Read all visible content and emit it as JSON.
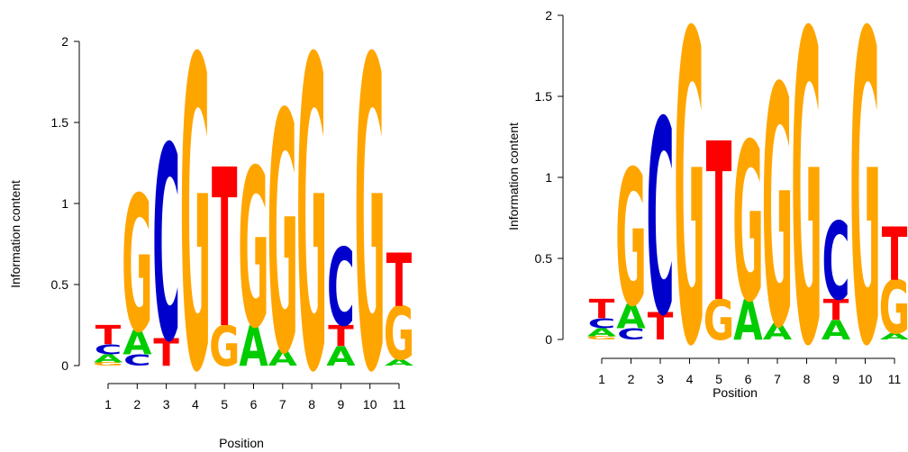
{
  "colors": {
    "A": "#00cc00",
    "C": "#0000cc",
    "G": "#ffa500",
    "T": "#ff0000"
  },
  "chart_data": [
    {
      "type": "sequence-logo",
      "xlabel": "Position",
      "ylabel": "Information content",
      "ylim": [
        0,
        2
      ],
      "yticks": [
        "0",
        "0.5",
        "1",
        "1.5",
        "2"
      ],
      "positions": [
        "1",
        "2",
        "3",
        "4",
        "5",
        "6",
        "7",
        "8",
        "9",
        "10",
        "11"
      ],
      "stacks": [
        [
          {
            "letter": "G",
            "bits": 0.02
          },
          {
            "letter": "A",
            "bits": 0.05
          },
          {
            "letter": "C",
            "bits": 0.06
          },
          {
            "letter": "T",
            "bits": 0.12
          }
        ],
        [
          {
            "letter": "C",
            "bits": 0.07
          },
          {
            "letter": "A",
            "bits": 0.15
          },
          {
            "letter": "G",
            "bits": 0.84
          }
        ],
        [
          {
            "letter": "T",
            "bits": 0.17
          },
          {
            "letter": "C",
            "bits": 1.2
          }
        ],
        [
          {
            "letter": "G",
            "bits": 1.92
          }
        ],
        [
          {
            "letter": "G",
            "bits": 0.25
          },
          {
            "letter": "T",
            "bits": 0.98
          }
        ],
        [
          {
            "letter": "A",
            "bits": 0.25
          },
          {
            "letter": "G",
            "bits": 0.98
          }
        ],
        [
          {
            "letter": "A",
            "bits": 0.1
          },
          {
            "letter": "G",
            "bits": 1.48
          }
        ],
        [
          {
            "letter": "G",
            "bits": 1.92
          }
        ],
        [
          {
            "letter": "A",
            "bits": 0.12
          },
          {
            "letter": "T",
            "bits": 0.13
          },
          {
            "letter": "C",
            "bits": 0.48
          }
        ],
        [
          {
            "letter": "G",
            "bits": 1.92
          }
        ],
        [
          {
            "letter": "A",
            "bits": 0.04
          },
          {
            "letter": "G",
            "bits": 0.33
          },
          {
            "letter": "T",
            "bits": 0.33
          }
        ]
      ]
    },
    {
      "type": "sequence-logo",
      "xlabel": "Position",
      "ylabel": "Information content",
      "ylim": [
        0,
        2
      ],
      "yticks": [
        "0",
        "0.5",
        "1",
        "1.5",
        "2"
      ],
      "positions": [
        "1",
        "2",
        "3",
        "4",
        "5",
        "6",
        "7",
        "8",
        "9",
        "10",
        "11"
      ],
      "stacks": [
        [
          {
            "letter": "G",
            "bits": 0.02
          },
          {
            "letter": "A",
            "bits": 0.05
          },
          {
            "letter": "C",
            "bits": 0.06
          },
          {
            "letter": "T",
            "bits": 0.12
          }
        ],
        [
          {
            "letter": "C",
            "bits": 0.07
          },
          {
            "letter": "A",
            "bits": 0.15
          },
          {
            "letter": "G",
            "bits": 0.84
          }
        ],
        [
          {
            "letter": "T",
            "bits": 0.17
          },
          {
            "letter": "C",
            "bits": 1.2
          }
        ],
        [
          {
            "letter": "G",
            "bits": 1.92
          }
        ],
        [
          {
            "letter": "G",
            "bits": 0.25
          },
          {
            "letter": "T",
            "bits": 0.98
          }
        ],
        [
          {
            "letter": "A",
            "bits": 0.25
          },
          {
            "letter": "G",
            "bits": 0.98
          }
        ],
        [
          {
            "letter": "A",
            "bits": 0.1
          },
          {
            "letter": "G",
            "bits": 1.48
          }
        ],
        [
          {
            "letter": "G",
            "bits": 1.92
          }
        ],
        [
          {
            "letter": "A",
            "bits": 0.12
          },
          {
            "letter": "T",
            "bits": 0.13
          },
          {
            "letter": "C",
            "bits": 0.48
          }
        ],
        [
          {
            "letter": "G",
            "bits": 1.92
          }
        ],
        [
          {
            "letter": "A",
            "bits": 0.04
          },
          {
            "letter": "G",
            "bits": 0.33
          },
          {
            "letter": "T",
            "bits": 0.33
          }
        ]
      ]
    }
  ]
}
